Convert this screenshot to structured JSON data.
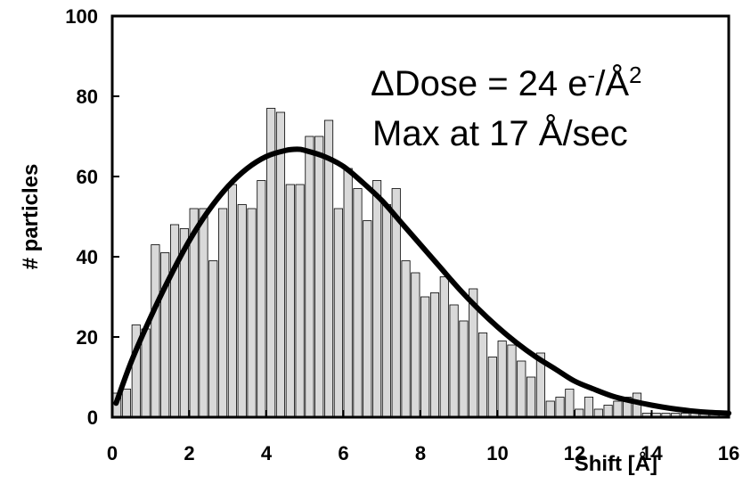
{
  "chart_data": {
    "type": "bar",
    "title": "",
    "xlabel": "Shift [Å]",
    "ylabel": "# particles",
    "xlim": [
      0,
      16
    ],
    "ylim": [
      0,
      100
    ],
    "xticks": [
      "0",
      "2",
      "4",
      "6",
      "8",
      "10",
      "12",
      "14",
      "16"
    ],
    "yticks": [
      "0",
      "20",
      "40",
      "60",
      "80",
      "100"
    ],
    "grid": false,
    "legend": "none",
    "bar_color": "#d9d9d9",
    "curve_color": "#000000",
    "annotation": {
      "delta": "Δ",
      "line1_pre": "Dose = 24 e",
      "line1_sup_minus": "-",
      "line1_unit": "/Å",
      "line1_sup_exp": "2",
      "line2": "Max at 17 Å/sec"
    },
    "series": [
      {
        "type": "bar",
        "bin_width": 0.25,
        "x": [
          0.125,
          0.375,
          0.625,
          0.875,
          1.125,
          1.375,
          1.625,
          1.875,
          2.125,
          2.375,
          2.625,
          2.875,
          3.125,
          3.375,
          3.625,
          3.875,
          4.125,
          4.375,
          4.625,
          4.875,
          5.125,
          5.375,
          5.625,
          5.875,
          6.125,
          6.375,
          6.625,
          6.875,
          7.125,
          7.375,
          7.625,
          7.875,
          8.125,
          8.375,
          8.625,
          8.875,
          9.125,
          9.375,
          9.625,
          9.875,
          10.125,
          10.375,
          10.625,
          10.875,
          11.125,
          11.375,
          11.625,
          11.875,
          12.125,
          12.375,
          12.625,
          12.875,
          13.125,
          13.375,
          13.625,
          13.875,
          14.125,
          14.375,
          14.625,
          14.875,
          15.125,
          15.375,
          15.625,
          15.875
        ],
        "values": [
          6,
          7,
          23,
          22,
          43,
          41,
          48,
          47,
          52,
          52,
          39,
          52,
          58,
          53,
          52,
          59,
          77,
          76,
          58,
          58,
          70,
          70,
          74,
          52,
          62,
          57,
          49,
          59,
          53,
          57,
          39,
          36,
          30,
          31,
          35,
          28,
          24,
          32,
          21,
          15,
          19,
          18,
          14,
          10,
          16,
          4,
          5,
          7,
          2,
          5,
          2,
          3,
          4,
          5,
          6,
          1,
          1,
          1,
          1,
          1,
          1,
          1,
          1,
          1
        ]
      },
      {
        "type": "line",
        "x": [
          0.1,
          0.5,
          1.0,
          1.5,
          2.0,
          2.5,
          3.0,
          3.5,
          4.0,
          4.5,
          4.8,
          5.0,
          5.5,
          6.0,
          6.5,
          7.0,
          7.5,
          8.0,
          8.5,
          9.0,
          9.5,
          10.0,
          10.5,
          11.0,
          11.5,
          12.0,
          12.5,
          13.0,
          13.5,
          14.0,
          14.5,
          15.0,
          15.5,
          16.0
        ],
        "values": [
          3.5,
          14,
          25,
          35,
          44,
          51.5,
          57.5,
          62,
          65,
          66.5,
          66.8,
          66.5,
          65,
          62.5,
          58.5,
          54,
          48.5,
          43,
          37.5,
          32,
          27,
          22.5,
          18.5,
          15,
          12,
          9,
          7,
          5.2,
          4,
          3,
          2.2,
          1.6,
          1.2,
          1.0
        ]
      }
    ]
  }
}
